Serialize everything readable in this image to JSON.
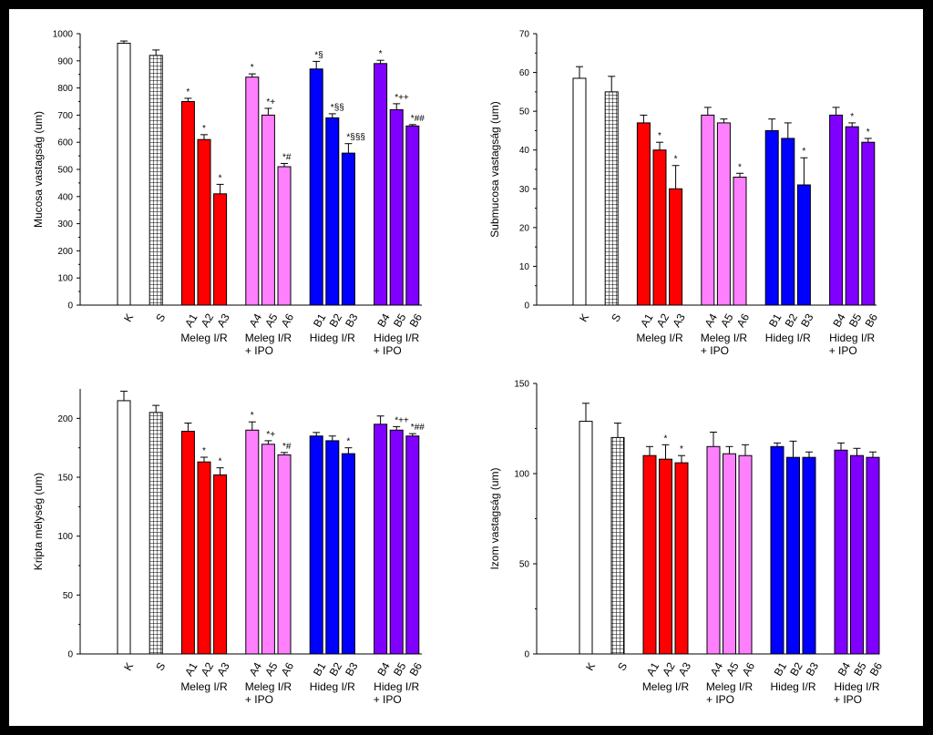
{
  "colors": {
    "control": "#ffffff",
    "sham": "#ffffff",
    "warm": "#ff0000",
    "warm_ipo": "#ff80ff",
    "cold": "#0000ff",
    "cold_ipo": "#8000ff",
    "axis": "#000000"
  },
  "groups": {
    "warm": "Meleg I/R",
    "warm_ipo_line1": "Meleg I/R",
    "warm_ipo_line2": "+ IPO",
    "cold": "Hideg I/R",
    "cold_ipo_line1": "Hideg I/R",
    "cold_ipo_line2": "+ IPO"
  },
  "chart_data": [
    {
      "id": "mucosa",
      "type": "bar",
      "ylabel": "Mucosa vastagság (um)",
      "ylim": [
        0,
        1000
      ],
      "yticks": [
        0,
        100,
        200,
        300,
        400,
        500,
        600,
        700,
        800,
        900,
        1000
      ],
      "categories": [
        "K",
        "S",
        "A1",
        "A2",
        "A3",
        "A4",
        "A5",
        "A6",
        "B1",
        "B2",
        "B3",
        "B4",
        "B5",
        "B6"
      ],
      "values": [
        965,
        920,
        750,
        610,
        410,
        840,
        700,
        510,
        870,
        690,
        560,
        890,
        720,
        660
      ],
      "errors": [
        8,
        20,
        12,
        18,
        35,
        12,
        25,
        12,
        28,
        15,
        35,
        12,
        22,
        5
      ],
      "labels": [
        "",
        "",
        "*",
        "*",
        "*",
        "*",
        "*+",
        "*#",
        "*§",
        "*§§",
        "*§§§",
        "*",
        "*++",
        "*##"
      ]
    },
    {
      "id": "submucosa",
      "type": "bar",
      "ylabel": "Submucosa vastagság (um)",
      "ylim": [
        0,
        70
      ],
      "yticks": [
        0,
        10,
        20,
        30,
        40,
        50,
        60,
        70
      ],
      "categories": [
        "K",
        "S",
        "A1",
        "A2",
        "A3",
        "A4",
        "A5",
        "A6",
        "B1",
        "B2",
        "B3",
        "B4",
        "B5",
        "B6"
      ],
      "values": [
        58.5,
        55,
        47,
        40,
        30,
        49,
        47,
        33,
        45,
        43,
        31,
        49,
        46,
        42
      ],
      "errors": [
        3,
        4,
        2,
        2,
        6,
        2,
        1,
        1,
        3,
        4,
        7,
        2,
        1,
        1
      ],
      "labels": [
        "",
        "",
        "",
        "*",
        "*",
        "",
        "",
        "*",
        "",
        "",
        "*",
        "",
        "*",
        "*"
      ]
    },
    {
      "id": "kripta",
      "type": "bar",
      "ylabel": "Kripta mélység (um)",
      "ylim": [
        0,
        225
      ],
      "yticks": [
        0,
        50,
        100,
        150,
        200
      ],
      "categories": [
        "K",
        "S",
        "A1",
        "A2",
        "A3",
        "A4",
        "A5",
        "A6",
        "B1",
        "B2",
        "B3",
        "B4",
        "B5",
        "B6"
      ],
      "values": [
        215,
        205,
        189,
        163,
        152,
        190,
        178,
        169,
        185,
        181,
        170,
        195,
        190,
        185
      ],
      "errors": [
        8,
        6,
        7,
        4,
        6,
        7,
        3,
        2,
        3,
        4,
        5,
        7,
        3,
        2
      ],
      "labels": [
        "",
        "",
        "",
        "*",
        "*",
        "*",
        "*+",
        "*#",
        "",
        "",
        "*",
        "",
        "*++",
        "*##"
      ]
    },
    {
      "id": "izom",
      "type": "bar",
      "ylabel": "Izom vastagság (um)",
      "ylim": [
        0,
        150
      ],
      "yticks": [
        0,
        50,
        100,
        150
      ],
      "categories": [
        "K",
        "S",
        "A1",
        "A2",
        "A3",
        "A4",
        "A5",
        "A6",
        "B1",
        "B2",
        "B3",
        "B4",
        "B5",
        "B6"
      ],
      "values": [
        129,
        120,
        110,
        108,
        106,
        115,
        111,
        110,
        115,
        109,
        109,
        113,
        110,
        109
      ],
      "errors": [
        10,
        8,
        5,
        8,
        4,
        8,
        4,
        6,
        2,
        9,
        3,
        4,
        4,
        3
      ],
      "labels": [
        "",
        "",
        "",
        "*",
        "*",
        "",
        "",
        "",
        "",
        "",
        "",
        "",
        "",
        ""
      ]
    }
  ]
}
